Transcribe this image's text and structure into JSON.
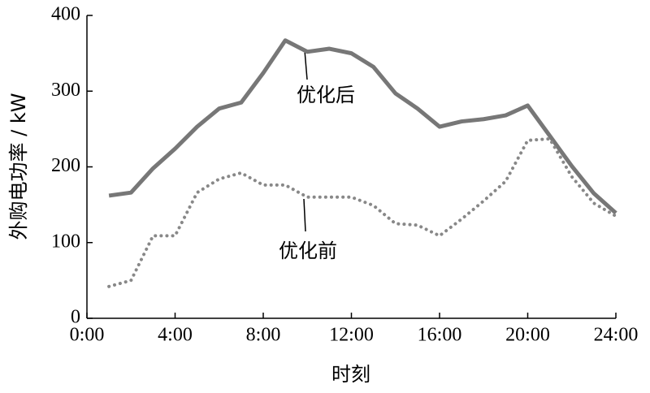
{
  "chart_data": {
    "type": "line",
    "ylabel": "外购电功率 / kW",
    "xlabel": "时刻",
    "x": [
      1,
      2,
      3,
      4,
      5,
      6,
      7,
      8,
      9,
      10,
      11,
      12,
      13,
      14,
      15,
      16,
      17,
      18,
      19,
      20,
      21,
      22,
      23,
      24
    ],
    "series": [
      {
        "name": "优化后",
        "color": "#777777",
        "style": "solid",
        "values": [
          162,
          166,
          198,
          224,
          253,
          277,
          285,
          324,
          367,
          352,
          356,
          350,
          332,
          297,
          277,
          253,
          260,
          263,
          268,
          281,
          241,
          201,
          165,
          139
        ]
      },
      {
        "name": "优化前",
        "color": "#888888",
        "style": "dotted",
        "values": [
          42,
          50,
          109,
          109,
          166,
          184,
          192,
          176,
          176,
          160,
          160,
          160,
          149,
          125,
          123,
          109,
          131,
          155,
          181,
          235,
          237,
          187,
          152,
          135
        ]
      }
    ],
    "xlim": [
      0,
      24
    ],
    "xticks": [
      {
        "value": 0,
        "label": "0:00"
      },
      {
        "value": 4,
        "label": "4:00"
      },
      {
        "value": 8,
        "label": "8:00"
      },
      {
        "value": 12,
        "label": "12:00"
      },
      {
        "value": 16,
        "label": "16:00"
      },
      {
        "value": 20,
        "label": "20:00"
      },
      {
        "value": 24,
        "label": "24:00"
      }
    ],
    "ylim": [
      0,
      400
    ],
    "yticks": [
      0,
      100,
      200,
      300,
      400
    ]
  }
}
